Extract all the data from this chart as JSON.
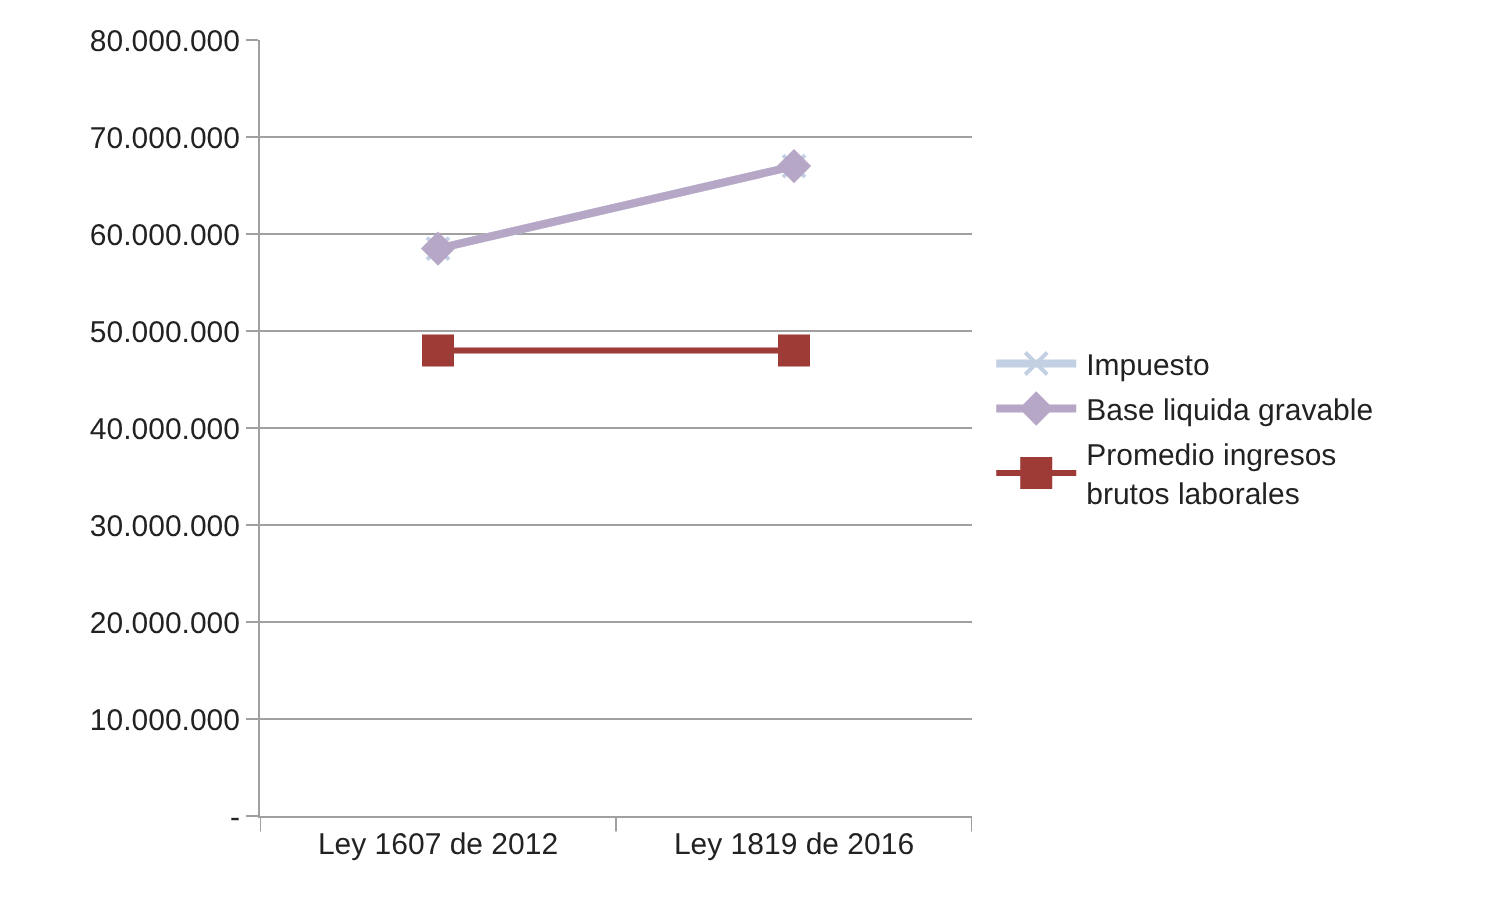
{
  "chart_data": {
    "type": "line",
    "categories": [
      "Ley 1607 de 2012",
      "Ley 1819 de 2016"
    ],
    "series": [
      {
        "name": "Impuesto",
        "color": "#c3cfe2",
        "marker": "cross",
        "values": [
          58500000,
          67000000
        ]
      },
      {
        "name": "Base liquida gravable",
        "color": "#b7a7c7",
        "marker": "diamond",
        "values": [
          58500000,
          67000000
        ]
      },
      {
        "name": "Promedio ingresos brutos laborales",
        "color": "#9e3b36",
        "marker": "square",
        "values": [
          48000000,
          48000000
        ]
      }
    ],
    "ylim": [
      0,
      80000000
    ],
    "yticks": [
      {
        "value": 0,
        "label": "-"
      },
      {
        "value": 10000000,
        "label": "10.000.000"
      },
      {
        "value": 20000000,
        "label": "20.000.000"
      },
      {
        "value": 30000000,
        "label": "30.000.000"
      },
      {
        "value": 40000000,
        "label": "40.000.000"
      },
      {
        "value": 50000000,
        "label": "50.000.000"
      },
      {
        "value": 60000000,
        "label": "60.000.000"
      },
      {
        "value": 70000000,
        "label": "70.000.000"
      },
      {
        "value": 80000000,
        "label": "80.000.000"
      }
    ],
    "grid": "y",
    "legend": "right"
  }
}
